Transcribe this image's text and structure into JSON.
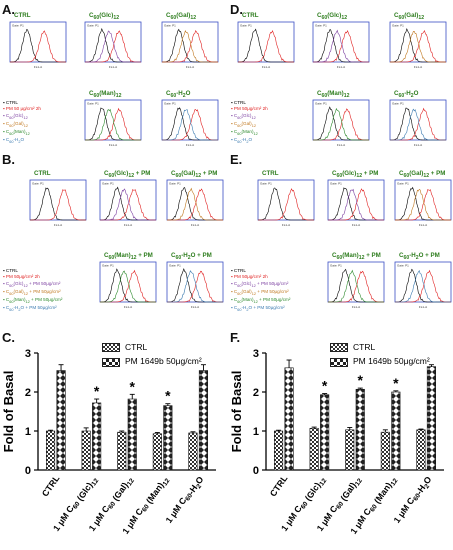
{
  "panels": {
    "A": "A.",
    "B": "B.",
    "C": "C.",
    "D": "D.",
    "E": "E.",
    "F": "F."
  },
  "histogram_labels": {
    "gate": "Gate: P1",
    "x_axis": "FL1-A",
    "y_axis": "Count",
    "titles_plain": [
      "CTRL",
      "C60(Glc)12",
      "C60(Gal)12",
      "C60(Man)12",
      "C60-H2O"
    ],
    "titles_pm": [
      "CTRL",
      "C60(Glc)12 + PM",
      "C60(Gal)12 + PM",
      "C60(Man)12 + PM",
      "C60-H2O + PM"
    ]
  },
  "legend_plain_left": [
    {
      "text": "CTRL",
      "color": "#000000"
    },
    {
      "text": "PM 50 μg/cm² 2h",
      "color": "#e02020"
    },
    {
      "text": "C60(Glc)12",
      "color": "#7b3fa0"
    },
    {
      "text": "C60(Gal)12",
      "color": "#c07820"
    },
    {
      "text": "C60(Man)12",
      "color": "#2e8b2e"
    },
    {
      "text": "C60-H2O",
      "color": "#3a7ab0"
    }
  ],
  "legend_plain_right": [
    {
      "text": "CTRL",
      "color": "#000000"
    },
    {
      "text": "PM 50μg/cm² 2h",
      "color": "#e02020"
    },
    {
      "text": "C60(Glc)12",
      "color": "#7b3fa0"
    },
    {
      "text": "C60(Gal)12",
      "color": "#c07820"
    },
    {
      "text": "C60(Man)12",
      "color": "#2e8b2e"
    },
    {
      "text": "C60-H2O",
      "color": "#3a7ab0"
    }
  ],
  "legend_pm": [
    {
      "text": "CTRL",
      "color": "#000000"
    },
    {
      "text": "PM 50μg/cm² 2h",
      "color": "#e02020"
    },
    {
      "text": "C60(Glc)12 + PM 50μg/cm²",
      "color": "#7b3fa0"
    },
    {
      "text": "C60(Gal)12 + PM 50μg/cm²",
      "color": "#c07820"
    },
    {
      "text": "C60(Man)12 + PM 50μg/cm²",
      "color": "#2e8b2e"
    },
    {
      "text": "C60-H2O + PM 50μg/cm²",
      "color": "#3a7ab0"
    }
  ],
  "colors": {
    "ctrl": "#000000",
    "pm": "#e02020",
    "glc": "#7b3fa0",
    "gal": "#c07820",
    "man": "#2e8b2e",
    "h2o": "#3a7ab0",
    "frame": "#3b4fc4"
  },
  "chart_data": [
    {
      "type": "bar",
      "panel": "C.",
      "ylabel": "Fold of Basal",
      "ylim": [
        0,
        3
      ],
      "yticks": [
        0,
        1,
        2,
        3
      ],
      "categories": [
        "CTRL",
        "1 μM C60 (Glc)12",
        "1 μM C60 (Gal)12",
        "1 μM C60 (Man)12",
        "1 μM C60-H2O"
      ],
      "series": [
        {
          "name": "CTRL",
          "values": [
            1.0,
            1.0,
            0.97,
            0.93,
            0.95
          ],
          "errors": [
            0.02,
            0.08,
            0.03,
            0.03,
            0.03
          ]
        },
        {
          "name": "PM 1649b 50μg/cm²",
          "values": [
            2.55,
            1.72,
            1.82,
            1.65,
            2.55
          ],
          "errors": [
            0.15,
            0.1,
            0.12,
            0.05,
            0.15
          ]
        }
      ],
      "significance": [
        "",
        "*",
        "*",
        "*",
        ""
      ]
    },
    {
      "type": "bar",
      "panel": "F.",
      "ylabel": "Fold of Basal",
      "ylim": [
        0,
        3
      ],
      "yticks": [
        0,
        1,
        2,
        3
      ],
      "categories": [
        "CTRL",
        "1 μM C60 (Glc)12",
        "1 μM C60 (Gal)12",
        "1 μM C60 (Man)12",
        "1 μM C60-H2O"
      ],
      "series": [
        {
          "name": "CTRL",
          "values": [
            1.0,
            1.07,
            1.03,
            0.97,
            1.03
          ],
          "errors": [
            0.02,
            0.03,
            0.06,
            0.06,
            0.02
          ]
        },
        {
          "name": "PM 1649b 50μg/cm²",
          "values": [
            2.62,
            1.93,
            2.07,
            2.0,
            2.65
          ],
          "errors": [
            0.2,
            0.03,
            0.03,
            0.03,
            0.05
          ]
        }
      ],
      "significance": [
        "",
        "*",
        "*",
        "*",
        ""
      ]
    }
  ]
}
